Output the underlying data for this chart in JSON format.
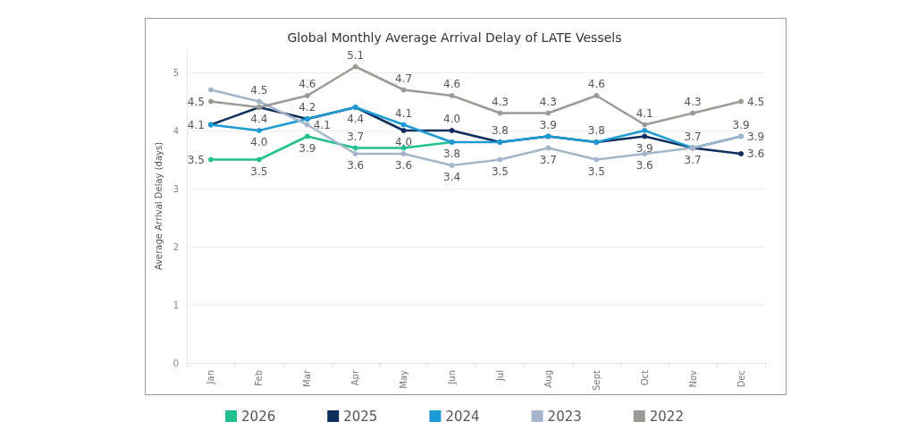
{
  "chart_data": {
    "type": "line",
    "title": "Global Monthly Average Arrival Delay of LATE Vessels",
    "ylabel": "Average Arrival Delay (days)",
    "categories": [
      "Jan",
      "Feb",
      "Mar",
      "Apr",
      "May",
      "Jun",
      "Jul",
      "Aug",
      "Sept",
      "Oct",
      "Nov",
      "Dec"
    ],
    "series": [
      {
        "name": "2026",
        "color": "#22c08f",
        "values": [
          3.5,
          3.5,
          3.9,
          3.7,
          3.7,
          3.8,
          null,
          null,
          null,
          null,
          null,
          null
        ],
        "value_labels": [
          "3.5",
          "3.5",
          "3.9",
          "3.7",
          null,
          "3.8",
          null,
          null,
          null,
          null,
          null,
          null
        ]
      },
      {
        "name": "2025",
        "color": "#0e2f5e",
        "values": [
          4.1,
          4.4,
          4.2,
          4.4,
          4.0,
          4.0,
          3.8,
          3.9,
          3.8,
          3.9,
          3.7,
          3.6
        ],
        "value_labels": [
          "4.1",
          null,
          "4.2",
          null,
          "4.0",
          "4.0",
          "3.8",
          "3.9",
          "3.8",
          "3.9",
          "3.7",
          "3.6"
        ]
      },
      {
        "name": "2024",
        "color": "#1c9ad6",
        "values": [
          4.1,
          4.0,
          4.2,
          4.4,
          4.1,
          3.8,
          3.8,
          3.9,
          3.8,
          4.0,
          3.7,
          3.9
        ],
        "value_labels": [
          null,
          "4.0",
          null,
          "4.4",
          "4.1",
          null,
          null,
          null,
          null,
          null,
          null,
          "3.9"
        ]
      },
      {
        "name": "2023",
        "color": "#a4b5ca",
        "values": [
          4.7,
          4.5,
          4.1,
          3.6,
          3.6,
          3.4,
          3.5,
          3.7,
          3.5,
          3.6,
          3.7,
          3.9
        ],
        "value_labels": [
          null,
          "4.5",
          "4.1",
          "3.6",
          "3.6",
          "3.4",
          "3.5",
          "3.7",
          "3.5",
          "3.6",
          "3.7",
          "3.9"
        ]
      },
      {
        "name": "2022",
        "color": "#9b9b96",
        "values": [
          4.5,
          4.4,
          4.6,
          5.1,
          4.7,
          4.6,
          4.3,
          4.3,
          4.6,
          4.1,
          4.3,
          4.5
        ],
        "value_labels": [
          "4.5",
          "4.4",
          "4.6",
          "5.1",
          "4.7",
          "4.6",
          "4.3",
          "4.3",
          "4.6",
          "4.1",
          "4.3",
          "4.5"
        ]
      }
    ],
    "ylim": [
      0,
      5.4
    ],
    "yticks": [
      0,
      1,
      2,
      3,
      4,
      5
    ],
    "grid": "y",
    "legend": "bottom",
    "marker": "circle",
    "line_style": "solid"
  }
}
